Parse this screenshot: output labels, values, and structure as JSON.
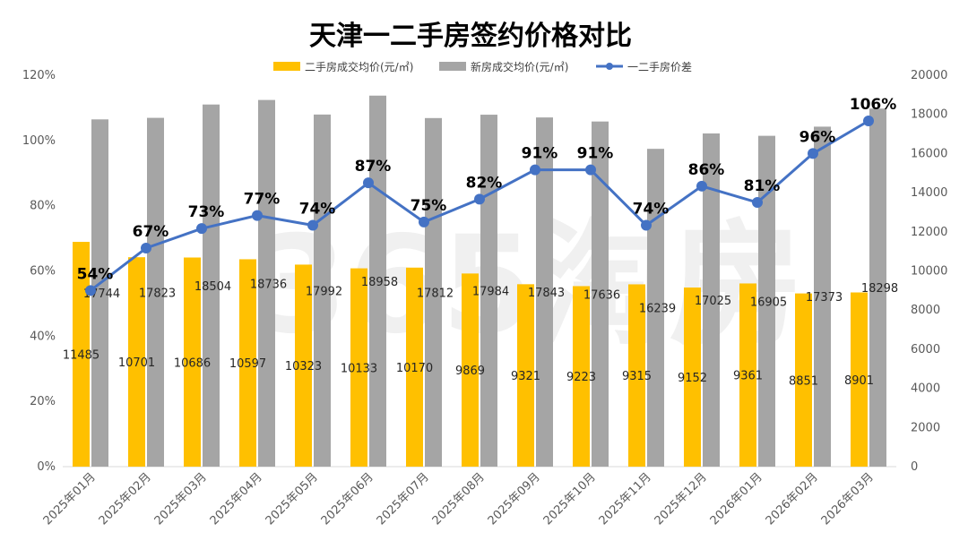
{
  "chart_data": {
    "type": "bar",
    "title": "天津一二手房签约价格对比",
    "categories": [
      "2025年01月",
      "2025年02月",
      "2025年03月",
      "2025年04月",
      "2025年05月",
      "2025年06月",
      "2025年07月",
      "2025年08月",
      "2025年09月",
      "2025年10月",
      "2025年11月",
      "2025年12月",
      "2026年01月",
      "2026年02月",
      "2026年03月"
    ],
    "series": [
      {
        "name": "二手房成交均价(元/㎡)",
        "type": "bar",
        "axis": "right",
        "color": "#FFC000",
        "values": [
          11485,
          10701,
          10686,
          10597,
          10323,
          10133,
          10170,
          9869,
          9321,
          9223,
          9315,
          9152,
          9361,
          8851,
          8901
        ],
        "labels": [
          "11485",
          "10701",
          "10686",
          "10597",
          "10323",
          "10133",
          "10170",
          "9869",
          "9321",
          "9223",
          "9315",
          "9152",
          "9361",
          "8851",
          "8901"
        ]
      },
      {
        "name": "新房成交均价(元/㎡)",
        "type": "bar",
        "axis": "right",
        "color": "#A5A5A5",
        "values": [
          17744,
          17823,
          18504,
          18736,
          17992,
          18958,
          17812,
          17984,
          17843,
          17636,
          16239,
          17025,
          16905,
          17373,
          18298
        ],
        "labels": [
          "17744",
          "17823",
          "18504",
          "18736",
          "17992",
          "18958",
          "17812",
          "17984",
          "17843",
          "17636",
          "16239",
          "17025",
          "16905",
          "17373",
          "18298"
        ]
      },
      {
        "name": "一二手房价差",
        "type": "line",
        "axis": "left",
        "color": "#4472C4",
        "values": [
          54,
          67,
          73,
          77,
          74,
          87,
          75,
          82,
          91,
          91,
          74,
          86,
          81,
          96,
          106
        ],
        "labels": [
          "54%",
          "67%",
          "73%",
          "77%",
          "74%",
          "87%",
          "75%",
          "82%",
          "91%",
          "91%",
          "74%",
          "86%",
          "81%",
          "96%",
          "106%"
        ]
      }
    ],
    "left_axis": {
      "min": 0,
      "max": 120,
      "step": 20,
      "ticks": [
        "0%",
        "20%",
        "40%",
        "60%",
        "80%",
        "100%",
        "120%"
      ]
    },
    "right_axis": {
      "min": 0,
      "max": 20000,
      "step": 2000,
      "ticks": [
        "0",
        "2000",
        "4000",
        "6000",
        "8000",
        "10000",
        "12000",
        "14000",
        "16000",
        "18000",
        "20000"
      ]
    },
    "grid": false,
    "legend_position": "top",
    "watermark": "365淘房"
  }
}
